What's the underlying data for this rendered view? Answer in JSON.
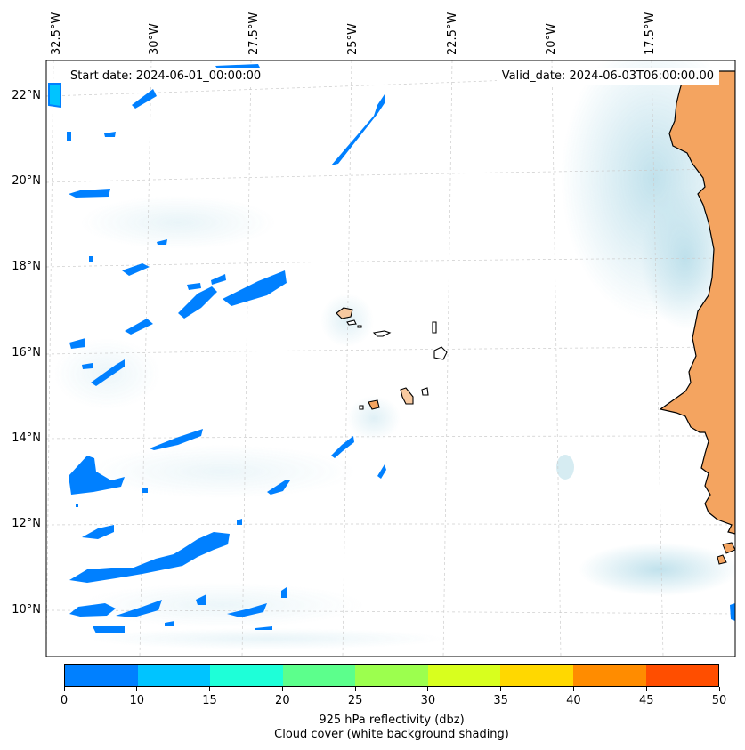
{
  "map": {
    "lon_labels": [
      "32.5°W",
      "30°W",
      "27.5°W",
      "25°W",
      "22.5°W",
      "20°W",
      "17.5°W"
    ],
    "lat_labels": [
      "22°N",
      "20°N",
      "18°N",
      "16°N",
      "14°N",
      "12°N",
      "10°N"
    ],
    "start_date": "Start date: 2024-06-01_00:00:00",
    "valid_date": "Valid_date: 2024-06-03T06:00:00.00",
    "colors": {
      "land": "#f4a460",
      "cloud": "#add8e6",
      "coastline": "#000000",
      "gridline": "#cccccc"
    }
  },
  "colorbar": {
    "ticks": [
      "0",
      "10",
      "15",
      "20",
      "25",
      "30",
      "35",
      "40",
      "45",
      "50"
    ],
    "colors": [
      "#0080ff",
      "#00c4ff",
      "#1effd8",
      "#5cff8c",
      "#9cff4e",
      "#d8ff1e",
      "#ffd800",
      "#ff8c00",
      "#ff4e00"
    ],
    "label": "925 hPa reflectivity (dbz)",
    "sublabel": "Cloud cover (white background shading)"
  }
}
